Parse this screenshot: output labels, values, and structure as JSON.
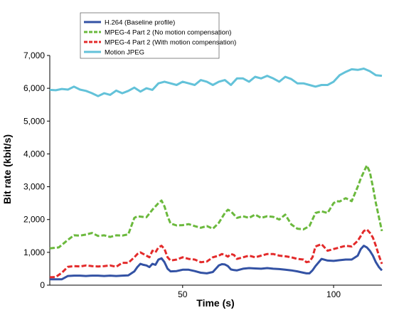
{
  "chart_data": {
    "type": "line",
    "title": "",
    "xlabel": "Time (s)",
    "ylabel": "Bit rate (kbit/s)",
    "xlim": [
      6,
      116
    ],
    "ylim": [
      0,
      7000
    ],
    "x_ticks": [
      50,
      100
    ],
    "x_tick_labels": [
      "50",
      "100"
    ],
    "y_ticks": [
      0,
      1000,
      2000,
      3000,
      4000,
      5000,
      6000,
      7000
    ],
    "y_tick_labels": [
      "0",
      "1,000",
      "2,000",
      "3,000",
      "4,000",
      "5,000",
      "6,000",
      "7,000"
    ],
    "grid": false,
    "legend_position": "top-left",
    "series": [
      {
        "name": "H.264 (Baseline profile)",
        "color": "#3352a4",
        "dash": "solid",
        "x": [
          6,
          10,
          12,
          14,
          16,
          18,
          20,
          22,
          24,
          26,
          28,
          30,
          32,
          34,
          35,
          36,
          37,
          38,
          39,
          40,
          41,
          42,
          43,
          44,
          45,
          46,
          48,
          50,
          52,
          54,
          56,
          58,
          60,
          62,
          63,
          64,
          65,
          66,
          67,
          68,
          70,
          72,
          74,
          76,
          78,
          80,
          82,
          84,
          86,
          88,
          90,
          91,
          92,
          93,
          94,
          96,
          98,
          100,
          102,
          104,
          106,
          108,
          109,
          110,
          111,
          112,
          113,
          114,
          115,
          116
        ],
        "values": [
          180,
          180,
          280,
          290,
          290,
          280,
          290,
          290,
          280,
          290,
          280,
          290,
          300,
          420,
          550,
          650,
          620,
          600,
          550,
          650,
          620,
          780,
          820,
          700,
          500,
          420,
          430,
          470,
          470,
          430,
          380,
          360,
          400,
          600,
          640,
          630,
          580,
          480,
          460,
          450,
          500,
          520,
          510,
          500,
          520,
          500,
          490,
          470,
          450,
          420,
          380,
          360,
          360,
          450,
          580,
          800,
          750,
          740,
          760,
          780,
          780,
          900,
          1100,
          1200,
          1150,
          1050,
          900,
          700,
          550,
          450
        ]
      },
      {
        "name": "MPEG-4 Part 2 (No motion compensation)",
        "color": "#6bb93d",
        "dash": "dashed",
        "x": [
          6,
          9,
          12,
          14,
          16,
          18,
          20,
          22,
          24,
          26,
          28,
          30,
          32,
          34,
          35,
          36,
          38,
          40,
          42,
          43,
          44,
          45,
          46,
          48,
          50,
          52,
          54,
          56,
          58,
          60,
          62,
          64,
          65,
          66,
          68,
          70,
          72,
          74,
          76,
          78,
          80,
          82,
          84,
          86,
          88,
          90,
          92,
          94,
          96,
          98,
          100,
          101,
          102,
          104,
          106,
          108,
          109,
          110,
          111,
          112,
          113,
          114,
          116
        ],
        "values": [
          1120,
          1150,
          1380,
          1520,
          1510,
          1540,
          1590,
          1500,
          1520,
          1470,
          1520,
          1510,
          1550,
          2050,
          2100,
          2090,
          2070,
          2300,
          2500,
          2580,
          2400,
          2100,
          1880,
          1820,
          1830,
          1860,
          1800,
          1750,
          1800,
          1720,
          1900,
          2200,
          2300,
          2250,
          2050,
          2100,
          2050,
          2150,
          2050,
          2100,
          2080,
          2000,
          2150,
          1850,
          1720,
          1700,
          1800,
          2200,
          2250,
          2200,
          2500,
          2560,
          2550,
          2650,
          2560,
          3000,
          3250,
          3450,
          3650,
          3450,
          3000,
          2500,
          1650
        ]
      },
      {
        "name": "MPEG-4 Part 2 (With motion compensation)",
        "color": "#e32b2b",
        "dash": "dashed",
        "x": [
          6,
          8,
          10,
          12,
          14,
          16,
          18,
          20,
          22,
          24,
          26,
          28,
          30,
          32,
          34,
          35,
          36,
          37,
          38,
          39,
          40,
          41,
          42,
          43,
          44,
          45,
          46,
          48,
          50,
          52,
          54,
          56,
          58,
          60,
          62,
          63,
          64,
          65,
          66,
          67,
          68,
          70,
          72,
          74,
          76,
          78,
          80,
          82,
          84,
          86,
          88,
          90,
          91,
          92,
          93,
          94,
          96,
          98,
          100,
          102,
          104,
          106,
          108,
          109,
          110,
          111,
          112,
          113,
          114,
          115,
          116
        ],
        "values": [
          240,
          250,
          380,
          560,
          580,
          570,
          600,
          580,
          570,
          580,
          600,
          560,
          680,
          680,
          850,
          950,
          1000,
          950,
          900,
          850,
          1050,
          1000,
          1150,
          1200,
          1100,
          850,
          750,
          780,
          850,
          800,
          780,
          700,
          720,
          850,
          900,
          950,
          920,
          870,
          950,
          920,
          800,
          850,
          900,
          850,
          900,
          950,
          950,
          900,
          880,
          850,
          800,
          780,
          700,
          720,
          850,
          1180,
          1250,
          1050,
          1100,
          1150,
          1200,
          1180,
          1350,
          1500,
          1650,
          1700,
          1600,
          1450,
          1200,
          900,
          650
        ]
      },
      {
        "name": "Motion JPEG",
        "color": "#63c2d9",
        "dash": "solid",
        "x": [
          6,
          8,
          10,
          12,
          14,
          16,
          18,
          20,
          22,
          24,
          26,
          28,
          30,
          32,
          34,
          36,
          38,
          40,
          42,
          44,
          46,
          48,
          50,
          52,
          54,
          56,
          58,
          60,
          62,
          64,
          66,
          68,
          70,
          72,
          74,
          76,
          78,
          80,
          82,
          84,
          86,
          88,
          90,
          92,
          94,
          96,
          98,
          100,
          102,
          104,
          106,
          108,
          110,
          112,
          114,
          116
        ],
        "values": [
          5950,
          5940,
          5980,
          5960,
          6050,
          5960,
          5920,
          5850,
          5760,
          5850,
          5800,
          5930,
          5850,
          5920,
          6020,
          5900,
          6000,
          5950,
          6150,
          6200,
          6150,
          6100,
          6200,
          6150,
          6100,
          6250,
          6200,
          6100,
          6200,
          6250,
          6100,
          6300,
          6300,
          6200,
          6350,
          6300,
          6380,
          6300,
          6200,
          6350,
          6280,
          6150,
          6150,
          6100,
          6050,
          6100,
          6100,
          6200,
          6400,
          6500,
          6580,
          6560,
          6600,
          6520,
          6400,
          6380
        ]
      }
    ]
  }
}
